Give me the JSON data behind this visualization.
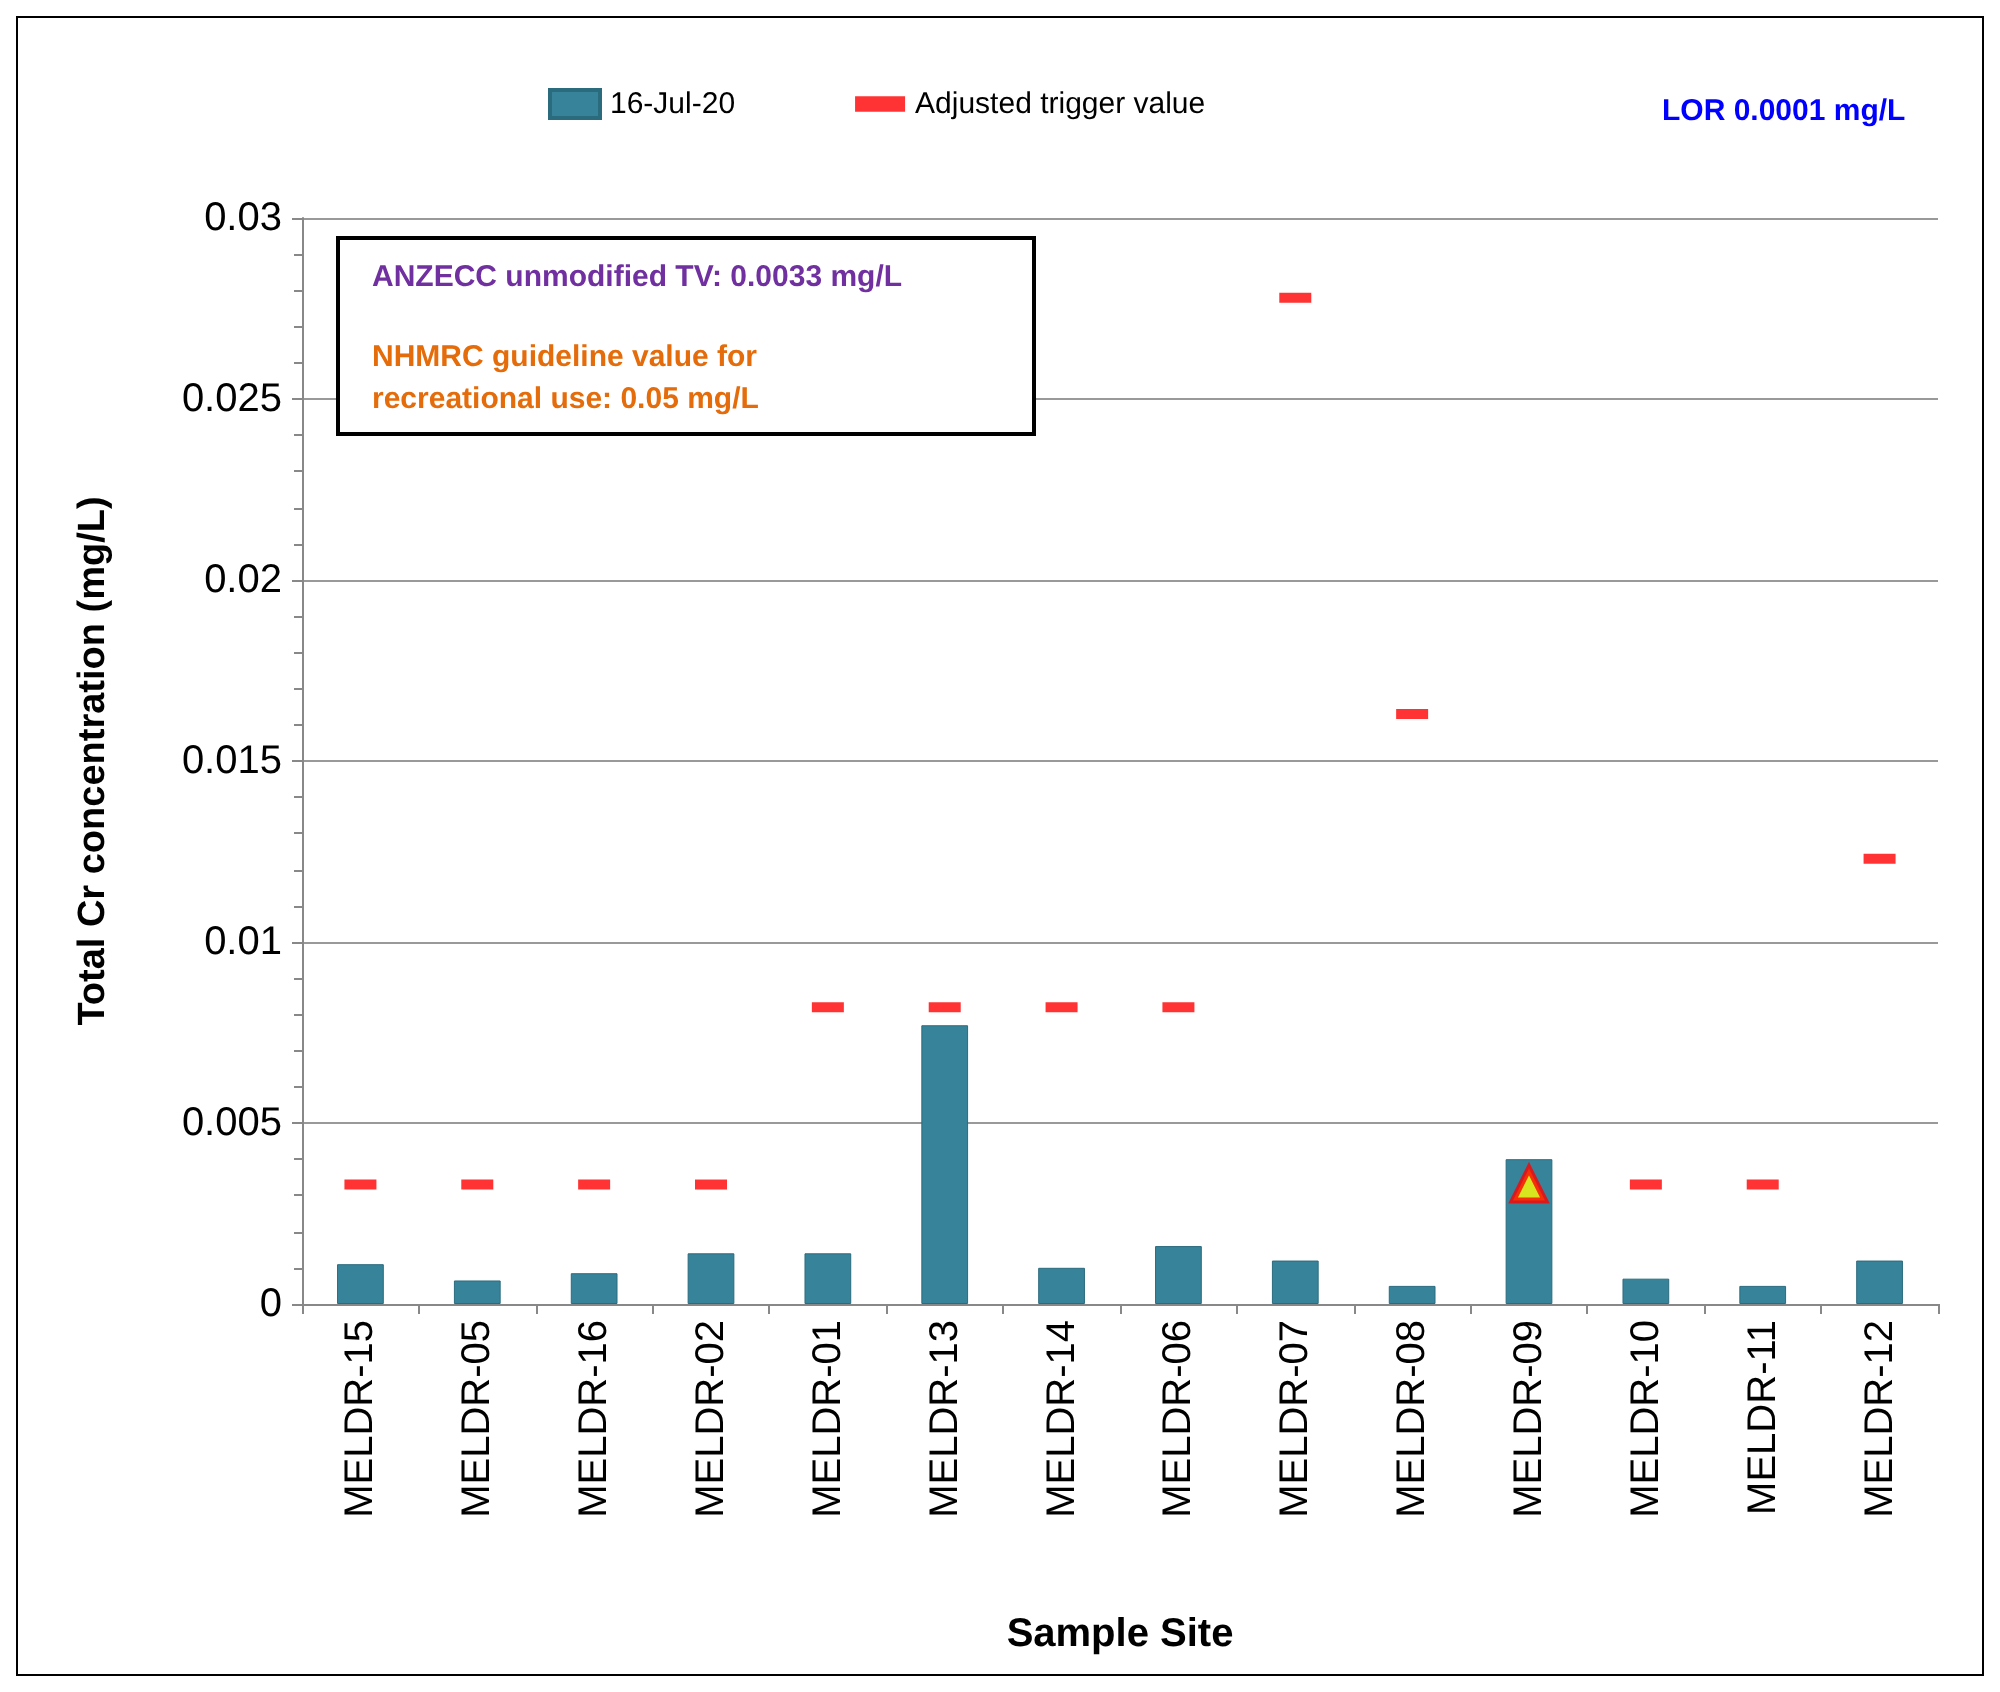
{
  "chart_data": {
    "type": "bar",
    "xlabel": "Sample Site",
    "ylabel": "Total Cr concentration (mg/L)",
    "categories": [
      "MELDR-15",
      "MELDR-05",
      "MELDR-16",
      "MELDR-02",
      "MELDR-01",
      "MELDR-13",
      "MELDR-14",
      "MELDR-06",
      "MELDR-07",
      "MELDR-08",
      "MELDR-09",
      "MELDR-10",
      "MELDR-11",
      "MELDR-12"
    ],
    "series": [
      {
        "name": "16-Jul-20",
        "color": "#37849a",
        "values": [
          0.0011,
          0.00065,
          0.00085,
          0.0014,
          0.0014,
          0.0077,
          0.001,
          0.0016,
          0.0012,
          0.0005,
          0.004,
          0.0007,
          0.0005,
          0.0012
        ]
      },
      {
        "name": "Adjusted trigger value",
        "type": "scatter",
        "color": "#ff0000",
        "values": [
          0.0033,
          0.0033,
          0.0033,
          0.0033,
          0.0082,
          0.0082,
          0.0082,
          0.0082,
          0.0278,
          0.0163,
          null,
          0.0033,
          0.0033,
          0.0123
        ]
      },
      {
        "type": "scatter",
        "marker": "triangle",
        "color": "#ff0000",
        "x": [
          "MELDR-09"
        ],
        "values": [
          0.0033
        ]
      }
    ],
    "ylim": [
      0,
      0.03
    ],
    "yticks": [
      0,
      0.005,
      0.01,
      0.015,
      0.02,
      0.025,
      0.03
    ],
    "grid": "y",
    "legend": "top",
    "annotations": [
      "LOR 0.0001 mg/L",
      "ANZECC unmodified TV: 0.0033 mg/L",
      "NHMRC guideline value for recreational use: 0.05 mg/L"
    ]
  }
}
